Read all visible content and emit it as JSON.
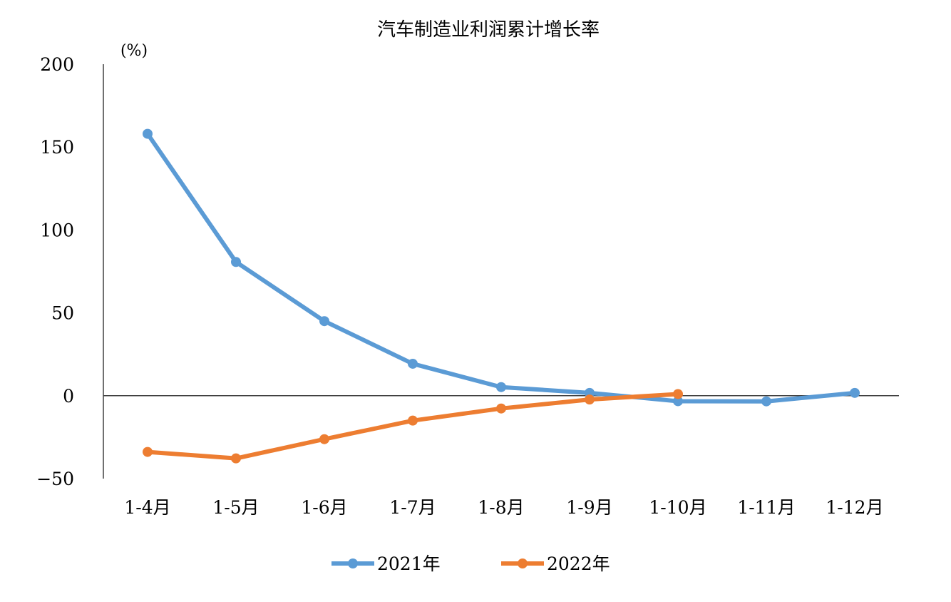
{
  "chart_data": {
    "type": "line",
    "title": "汽车制造业利润累计增长率",
    "ylabel": "(%)",
    "xlabel": "",
    "categories": [
      "1-4月",
      "1-5月",
      "1-6月",
      "1-7月",
      "1-8月",
      "1-9月",
      "1-10月",
      "1-11月",
      "1-12月"
    ],
    "ylim": [
      -50,
      200
    ],
    "yticks": [
      200,
      150,
      100,
      50,
      0,
      -50
    ],
    "grid": false,
    "legend_position": "bottom",
    "series": [
      {
        "name": "2021年",
        "color": "#5B9BD5",
        "values": [
          158,
          80.7,
          45,
          19.3,
          5.2,
          1.7,
          -3.3,
          -3.4,
          1.7
        ]
      },
      {
        "name": "2022年",
        "color": "#ED7D31",
        "values": [
          -33.9,
          -37.8,
          -26.2,
          -15,
          -7.7,
          -2.3,
          1.0,
          null,
          null
        ]
      }
    ]
  }
}
